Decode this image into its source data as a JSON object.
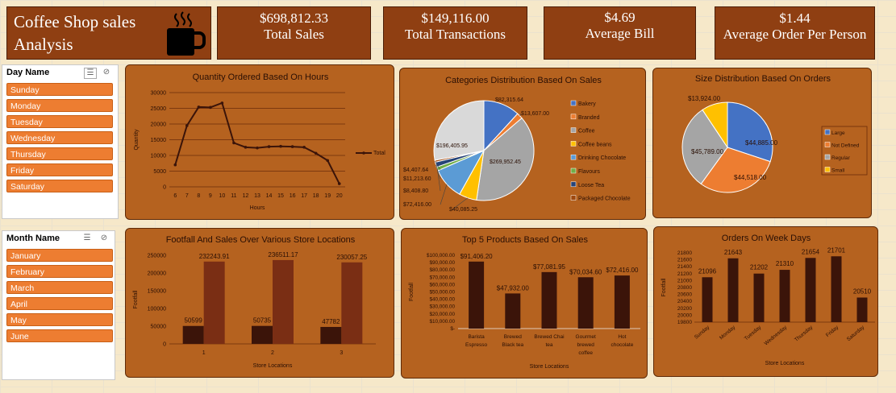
{
  "header": {
    "title": "Coffee Shop sales Analysis",
    "icon": "coffee-cup-icon",
    "kpis": [
      {
        "value": "$698,812.33",
        "label": "Total Sales"
      },
      {
        "value": "$149,116.00",
        "label": "Total Transactions"
      },
      {
        "value": "$4.69",
        "label": "Average Bill"
      },
      {
        "value": "$1.44",
        "label": "Average Order Per Person"
      }
    ]
  },
  "slicers": {
    "day": {
      "title": "Day Name",
      "items": [
        "Sunday",
        "Monday",
        "Tuesday",
        "Wednesday",
        "Thursday",
        "Friday",
        "Saturday"
      ]
    },
    "month": {
      "title": "Month Name",
      "items": [
        "January",
        "February",
        "March",
        "April",
        "May",
        "June"
      ]
    }
  },
  "colors": {
    "panel": "#b5621f",
    "bar_dark": "#3b1409",
    "bar_light": "#7a2e14",
    "line": "#3b1409"
  },
  "chart_data": [
    {
      "id": "hours",
      "type": "line",
      "title": "Quantity Ordered Based On Hours",
      "xlabel": "Hours",
      "ylabel": "Quantity",
      "x": [
        6,
        7,
        8,
        9,
        10,
        11,
        12,
        13,
        14,
        15,
        16,
        17,
        18,
        19,
        20
      ],
      "series": [
        {
          "name": "Total",
          "values": [
            7000,
            19500,
            25400,
            25300,
            26700,
            14000,
            12600,
            12400,
            12800,
            12900,
            12800,
            12600,
            10700,
            8400,
            1000
          ]
        }
      ],
      "ylim": [
        0,
        30000
      ],
      "yticks": [
        0,
        5000,
        10000,
        15000,
        20000,
        25000,
        30000
      ],
      "legend": "right",
      "grid": true
    },
    {
      "id": "categories",
      "type": "pie",
      "title": "Categories Distribution Based On Sales",
      "slices": [
        {
          "name": "Bakery",
          "value": 82315.64,
          "label": "$82,315.64",
          "color": "#4472c4"
        },
        {
          "name": "Branded",
          "value": 13607.0,
          "label": "$13,607.00",
          "color": "#ed7d31"
        },
        {
          "name": "Coffee",
          "value": 269952.45,
          "label": "$269,952.45",
          "color": "#a5a5a5"
        },
        {
          "name": "Coffee beans",
          "value": 40085.25,
          "label": "$40,085.25",
          "color": "#ffc000"
        },
        {
          "name": "Drinking Chocolate",
          "value": 72416.0,
          "label": "$72,416.00",
          "color": "#5b9bd5"
        },
        {
          "name": "Flavours",
          "value": 8408.8,
          "label": "$8,408.80",
          "color": "#70ad47"
        },
        {
          "name": "Loose Tea",
          "value": 11213.6,
          "label": "$11,213.60",
          "color": "#264478"
        },
        {
          "name": "Packaged Chocolate",
          "value": 4407.64,
          "label": "$4,407.64",
          "color": "#9e480e"
        },
        {
          "name": "Tea",
          "value": 196405.95,
          "label": "$196,405.95",
          "color": "#d9d9d9"
        }
      ],
      "legend_names": [
        "Bakery",
        "Branded",
        "Coffee",
        "Coffee beans",
        "Drinking Chocolate",
        "Flavours",
        "Loose Tea",
        "Packaged Chocolate"
      ],
      "legend": "right"
    },
    {
      "id": "sizes",
      "type": "pie",
      "title": "Size Distribution Based On Orders",
      "slices": [
        {
          "name": "Large",
          "value": 44885,
          "label": "$44,885.00",
          "color": "#4472c4"
        },
        {
          "name": "Not Defined",
          "value": 44518,
          "label": "$44,518.00",
          "color": "#ed7d31"
        },
        {
          "name": "Regular",
          "value": 45789,
          "label": "$45,789.00",
          "color": "#a5a5a5"
        },
        {
          "name": "Small",
          "value": 13924,
          "label": "$13,924.00",
          "color": "#ffc000"
        }
      ],
      "legend": "right"
    },
    {
      "id": "footfall",
      "type": "bar",
      "title": "Footfall And Sales Over Various Store Locations",
      "xlabel": "Store Locations",
      "ylabel": "Footfall",
      "categories": [
        "1",
        "2",
        "3"
      ],
      "series": [
        {
          "values": [
            50599,
            50735,
            47782
          ],
          "labels": [
            "50599",
            "50735",
            "47782"
          ]
        },
        {
          "values": [
            232243.91,
            236511.17,
            230057.25
          ],
          "labels": [
            "232243.91",
            "236511.17",
            "230057.25"
          ]
        }
      ],
      "ylim": [
        0,
        250000
      ],
      "yticks": [
        0,
        50000,
        100000,
        150000,
        200000,
        250000
      ]
    },
    {
      "id": "products",
      "type": "bar",
      "title": "Top 5 Products Based On Sales",
      "xlabel": "Store Locations",
      "ylabel": "Footfall",
      "categories": [
        [
          "Barista",
          "Espresso"
        ],
        [
          "Brewed",
          "Black tea"
        ],
        [
          "Brewed Chai",
          "tea"
        ],
        [
          "Gourmet",
          "brewed",
          "coffee"
        ],
        [
          "Hot",
          "chocolate"
        ]
      ],
      "values": [
        91406.2,
        47932.0,
        77081.95,
        70034.6,
        72416.0
      ],
      "labels": [
        "$91,406.20",
        "$47,932.00",
        "$77,081.95",
        "$70,034.60",
        "$72,416.00"
      ],
      "ylim": [
        0,
        100000
      ],
      "yticks": [
        0,
        10000,
        20000,
        30000,
        40000,
        50000,
        60000,
        70000,
        80000,
        90000,
        100000
      ],
      "ytick_labels": [
        "$-",
        "$10,000.00",
        "$20,000.00",
        "$30,000.00",
        "$40,000.00",
        "$50,000.00",
        "$60,000.00",
        "$70,000.00",
        "$80,000.00",
        "$90,000.00",
        "$100,000.00"
      ]
    },
    {
      "id": "weekdays",
      "type": "bar",
      "title": "Orders On Week Days",
      "xlabel": "Store Locations",
      "ylabel": "Footfall",
      "categories": [
        "Sunday",
        "Monday",
        "Tuesday",
        "Wednesday",
        "Thursday",
        "Friday",
        "Saturday"
      ],
      "values": [
        21096,
        21643,
        21202,
        21310,
        21654,
        21701,
        20510
      ],
      "ylim": [
        19800,
        21800
      ],
      "yticks": [
        19800,
        20000,
        20200,
        20400,
        20600,
        20800,
        21000,
        21200,
        21400,
        21600,
        21800
      ]
    }
  ]
}
